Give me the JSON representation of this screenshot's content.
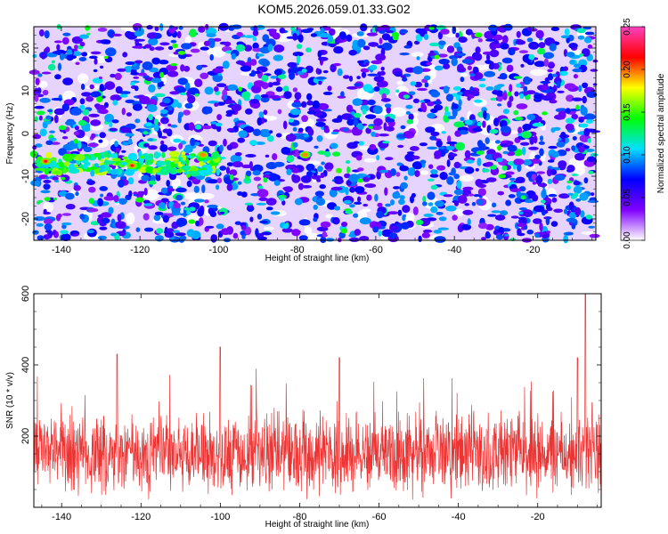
{
  "title": "KOM5.2026.059.01.33.G02",
  "chart_data": [
    {
      "type": "heatmap",
      "xlabel": "Height of straight line (km)",
      "ylabel": "Frequency (Hz)",
      "xlim": [
        -147,
        -4
      ],
      "ylim": [
        -25,
        25
      ],
      "xticks": [
        -140,
        -120,
        -100,
        -80,
        -60,
        -40,
        -20
      ],
      "yticks": [
        -20,
        -10,
        0,
        10,
        20
      ],
      "colorbar": {
        "label": "Normalized spectral amplitude",
        "range": [
          0.0,
          0.25
        ],
        "ticks": [
          0.0,
          0.05,
          0.1,
          0.15,
          0.2,
          0.25
        ],
        "tick_labels": [
          "0.00",
          "0.05",
          "0.10",
          "0.15",
          "0.20",
          "0.25"
        ],
        "colors": [
          "#ffffff",
          "#8000ff",
          "#0000ff",
          "#00e0ff",
          "#00ff00",
          "#ffff00",
          "#ff0000",
          "#ff40c0"
        ]
      },
      "features": [
        {
          "note": "band",
          "x_range": [
            -147,
            -100
          ],
          "y_center": -7,
          "peak": 0.22
        }
      ]
    },
    {
      "type": "line",
      "xlabel": "Height of straight line (km)",
      "ylabel": "SNR (10 * v/v)",
      "xlim": [
        -147,
        -4
      ],
      "ylim": [
        0,
        600
      ],
      "xticks": [
        -140,
        -120,
        -100,
        -80,
        -60,
        -40,
        -20
      ],
      "yticks": [
        200,
        400,
        600
      ],
      "color": "#ee3333",
      "peaks": [
        {
          "x": -126,
          "y": 430
        },
        {
          "x": -100,
          "y": 450
        },
        {
          "x": -70,
          "y": 420
        },
        {
          "x": -10,
          "y": 420
        },
        {
          "x": -8,
          "y": 600
        }
      ],
      "baseline_mean": 150,
      "baseline_spread": 110
    }
  ]
}
